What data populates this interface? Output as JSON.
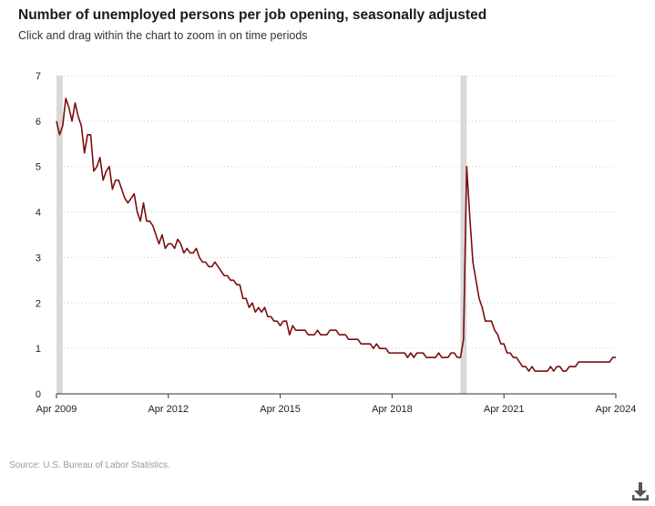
{
  "header": {
    "title": "Number of unemployed persons per job opening, seasonally adjusted",
    "subtitle": "Click and drag within the chart to zoom in on time periods"
  },
  "footer": {
    "source": "Source: U.S. Bureau of Labor Statistics."
  },
  "icons": {
    "download": "download-icon"
  },
  "colors": {
    "line": "#7b0d0d",
    "recession": "#d9d9d9",
    "grid": "#cccccc"
  },
  "chart_data": {
    "type": "line",
    "title": "Number of unemployed persons per job opening, seasonally adjusted",
    "xlabel": "",
    "ylabel": "",
    "xlim": [
      "2009-04",
      "2024-04"
    ],
    "ylim": [
      0,
      7
    ],
    "y_ticks": [
      "0",
      "1",
      "2",
      "3",
      "4",
      "5",
      "6",
      "7"
    ],
    "x_ticks": [
      {
        "date": "2009-04",
        "label": "Apr 2009"
      },
      {
        "date": "2012-04",
        "label": "Apr 2012"
      },
      {
        "date": "2015-04",
        "label": "Apr 2015"
      },
      {
        "date": "2018-04",
        "label": "Apr 2018"
      },
      {
        "date": "2021-04",
        "label": "Apr 2021"
      },
      {
        "date": "2024-04",
        "label": "Apr 2024"
      }
    ],
    "grid": "horizontal dotted",
    "recession_periods": [
      {
        "start": "2009-04",
        "end": "2009-06"
      },
      {
        "start": "2020-02",
        "end": "2020-04"
      }
    ],
    "series": [
      {
        "x": [
          "2009-04",
          "2009-05",
          "2009-06",
          "2009-07",
          "2009-08",
          "2009-09",
          "2009-10",
          "2009-11",
          "2009-12",
          "2010-01",
          "2010-02",
          "2010-03",
          "2010-04",
          "2010-05",
          "2010-06",
          "2010-07",
          "2010-08",
          "2010-09",
          "2010-10",
          "2010-11",
          "2010-12",
          "2011-01",
          "2011-02",
          "2011-03",
          "2011-04",
          "2011-05",
          "2011-06",
          "2011-07",
          "2011-08",
          "2011-09",
          "2011-10",
          "2011-11",
          "2011-12",
          "2012-01",
          "2012-02",
          "2012-03",
          "2012-04",
          "2012-05",
          "2012-06",
          "2012-07",
          "2012-08",
          "2012-09",
          "2012-10",
          "2012-11",
          "2012-12",
          "2013-01",
          "2013-02",
          "2013-03",
          "2013-04",
          "2013-05",
          "2013-06",
          "2013-07",
          "2013-08",
          "2013-09",
          "2013-10",
          "2013-11",
          "2013-12",
          "2014-01",
          "2014-02",
          "2014-03",
          "2014-04",
          "2014-05",
          "2014-06",
          "2014-07",
          "2014-08",
          "2014-09",
          "2014-10",
          "2014-11",
          "2014-12",
          "2015-01",
          "2015-02",
          "2015-03",
          "2015-04",
          "2015-05",
          "2015-06",
          "2015-07",
          "2015-08",
          "2015-09",
          "2015-10",
          "2015-11",
          "2015-12",
          "2016-01",
          "2016-02",
          "2016-03",
          "2016-04",
          "2016-05",
          "2016-06",
          "2016-07",
          "2016-08",
          "2016-09",
          "2016-10",
          "2016-11",
          "2016-12",
          "2017-01",
          "2017-02",
          "2017-03",
          "2017-04",
          "2017-05",
          "2017-06",
          "2017-07",
          "2017-08",
          "2017-09",
          "2017-10",
          "2017-11",
          "2017-12",
          "2018-01",
          "2018-02",
          "2018-03",
          "2018-04",
          "2018-05",
          "2018-06",
          "2018-07",
          "2018-08",
          "2018-09",
          "2018-10",
          "2018-11",
          "2018-12",
          "2019-01",
          "2019-02",
          "2019-03",
          "2019-04",
          "2019-05",
          "2019-06",
          "2019-07",
          "2019-08",
          "2019-09",
          "2019-10",
          "2019-11",
          "2019-12",
          "2020-01",
          "2020-02",
          "2020-03",
          "2020-04",
          "2020-05",
          "2020-06",
          "2020-07",
          "2020-08",
          "2020-09",
          "2020-10",
          "2020-11",
          "2020-12",
          "2021-01",
          "2021-02",
          "2021-03",
          "2021-04",
          "2021-05",
          "2021-06",
          "2021-07",
          "2021-08",
          "2021-09",
          "2021-10",
          "2021-11",
          "2021-12",
          "2022-01",
          "2022-02",
          "2022-03",
          "2022-04",
          "2022-05",
          "2022-06",
          "2022-07",
          "2022-08",
          "2022-09",
          "2022-10",
          "2022-11",
          "2022-12",
          "2023-01",
          "2023-02",
          "2023-03",
          "2023-04",
          "2023-05",
          "2023-06",
          "2023-07",
          "2023-08",
          "2023-09",
          "2023-10",
          "2023-11",
          "2023-12",
          "2024-01",
          "2024-02",
          "2024-03",
          "2024-04"
        ],
        "y": [
          6.0,
          5.7,
          5.9,
          6.5,
          6.3,
          6.0,
          6.4,
          6.1,
          5.9,
          5.3,
          5.7,
          5.7,
          4.9,
          5.0,
          5.2,
          4.7,
          4.9,
          5.0,
          4.5,
          4.7,
          4.7,
          4.5,
          4.3,
          4.2,
          4.3,
          4.4,
          4.0,
          3.8,
          4.2,
          3.8,
          3.8,
          3.7,
          3.5,
          3.3,
          3.5,
          3.2,
          3.3,
          3.3,
          3.2,
          3.4,
          3.3,
          3.1,
          3.2,
          3.1,
          3.1,
          3.2,
          3.0,
          2.9,
          2.9,
          2.8,
          2.8,
          2.9,
          2.8,
          2.7,
          2.6,
          2.6,
          2.5,
          2.5,
          2.4,
          2.4,
          2.1,
          2.1,
          1.9,
          2.0,
          1.8,
          1.9,
          1.8,
          1.9,
          1.7,
          1.7,
          1.6,
          1.6,
          1.5,
          1.6,
          1.6,
          1.3,
          1.5,
          1.4,
          1.4,
          1.4,
          1.4,
          1.3,
          1.3,
          1.3,
          1.4,
          1.3,
          1.3,
          1.3,
          1.4,
          1.4,
          1.4,
          1.3,
          1.3,
          1.3,
          1.2,
          1.2,
          1.2,
          1.2,
          1.1,
          1.1,
          1.1,
          1.1,
          1.0,
          1.1,
          1.0,
          1.0,
          1.0,
          0.9,
          0.9,
          0.9,
          0.9,
          0.9,
          0.9,
          0.8,
          0.9,
          0.8,
          0.9,
          0.9,
          0.9,
          0.8,
          0.8,
          0.8,
          0.8,
          0.9,
          0.8,
          0.8,
          0.8,
          0.9,
          0.9,
          0.8,
          0.8,
          1.2,
          5.0,
          3.9,
          2.9,
          2.5,
          2.1,
          1.9,
          1.6,
          1.6,
          1.6,
          1.4,
          1.3,
          1.1,
          1.1,
          0.9,
          0.9,
          0.8,
          0.8,
          0.7,
          0.6,
          0.6,
          0.5,
          0.6,
          0.5,
          0.5,
          0.5,
          0.5,
          0.5,
          0.6,
          0.5,
          0.6,
          0.6,
          0.5,
          0.5,
          0.6,
          0.6,
          0.6,
          0.7,
          0.7,
          0.7,
          0.7,
          0.7,
          0.7,
          0.7,
          0.7,
          0.7,
          0.7,
          0.7,
          0.8,
          0.8
        ]
      }
    ]
  }
}
